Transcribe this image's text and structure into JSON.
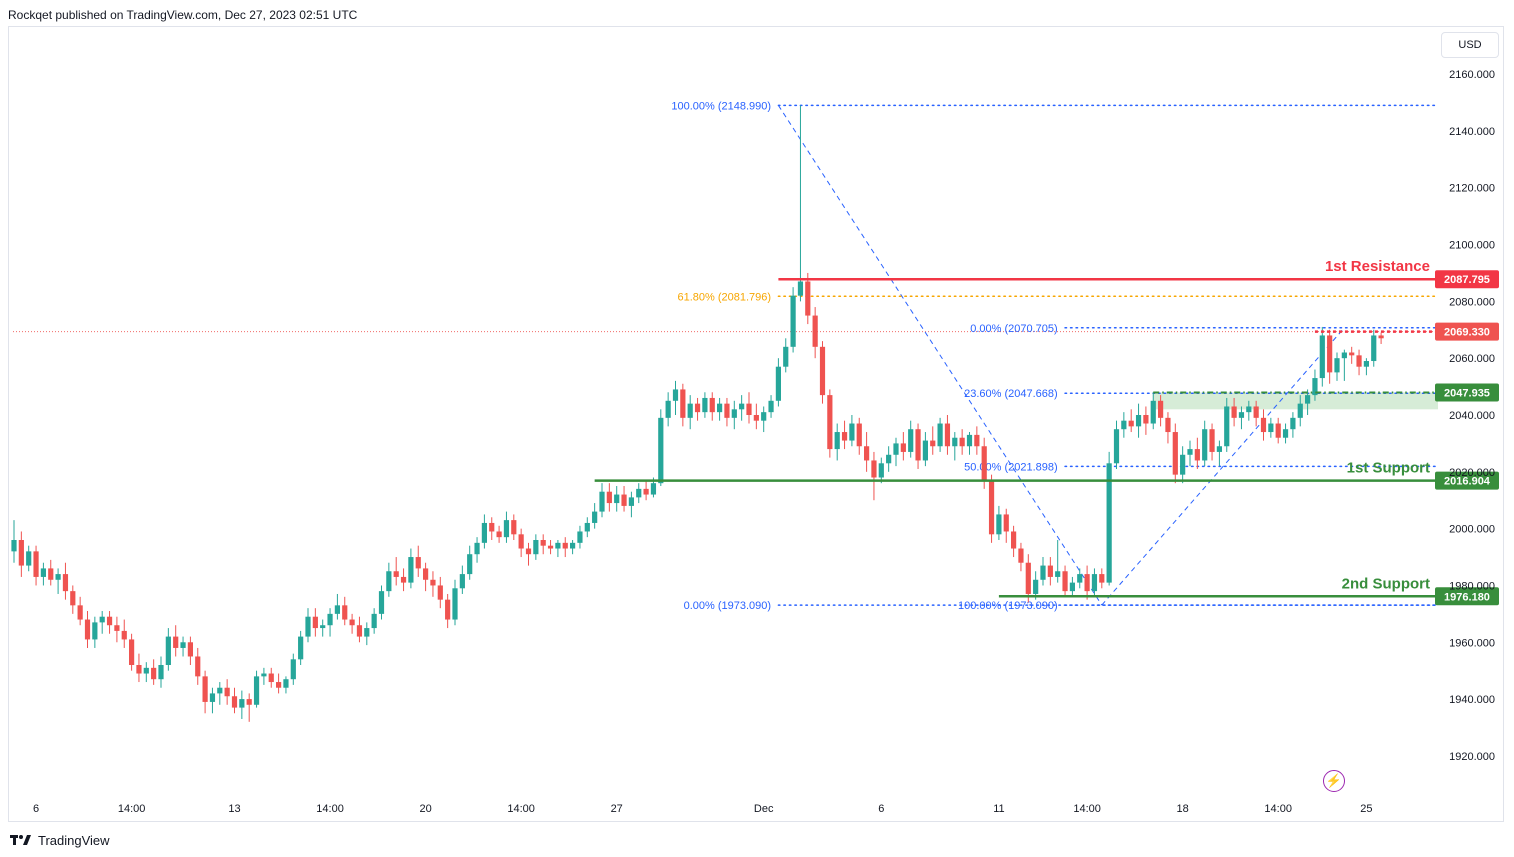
{
  "header": {
    "published": "Rockqet published on TradingView.com, Dec 27, 2023 02:51 UTC"
  },
  "price_axis": {
    "currency": "USD"
  },
  "footer": {
    "brand": "TradingView"
  },
  "colors": {
    "bull": "#26a69a",
    "bear": "#ef5350",
    "resistance": "#f23645",
    "support": "#388e3c",
    "fib_blue": "#2962ff",
    "fib_gold": "#f7a600",
    "zone": "#c8e6c9",
    "gridless_bg": "#ffffff"
  },
  "chart_data": {
    "type": "candlestick",
    "ylim": [
      1908,
      2172
    ],
    "y_ticks": [
      1920,
      1940,
      1960,
      1980,
      2000,
      2020,
      2040,
      2060,
      2080,
      2100,
      2120,
      2140,
      2160
    ],
    "y_tick_labels": [
      "1920.000",
      "1940.000",
      "1960.000",
      "1980.000",
      "2000.000",
      "2020.000",
      "2040.000",
      "2060.000",
      "2080.000",
      "2100.000",
      "2120.000",
      "2140.000",
      "2160.000"
    ],
    "x_ticks": [
      {
        "label": "6",
        "bar": 3
      },
      {
        "label": "14:00",
        "bar": 16
      },
      {
        "label": "13",
        "bar": 30
      },
      {
        "label": "14:00",
        "bar": 43
      },
      {
        "label": "20",
        "bar": 56
      },
      {
        "label": "14:00",
        "bar": 69
      },
      {
        "label": "27",
        "bar": 82
      },
      {
        "label": "Dec",
        "bar": 102
      },
      {
        "label": "6",
        "bar": 118
      },
      {
        "label": "11",
        "bar": 134
      },
      {
        "label": "14:00",
        "bar": 146
      },
      {
        "label": "18",
        "bar": 159
      },
      {
        "label": "14:00",
        "bar": 172
      },
      {
        "label": "25",
        "bar": 184
      }
    ],
    "ohlc": [
      [
        1992,
        2003,
        1988,
        1996
      ],
      [
        1996,
        1999,
        1983,
        1987
      ],
      [
        1987,
        1994,
        1985,
        1992
      ],
      [
        1992,
        1994,
        1980,
        1983
      ],
      [
        1983,
        1988,
        1980,
        1986
      ],
      [
        1986,
        1989,
        1980,
        1982
      ],
      [
        1982,
        1986,
        1977,
        1984
      ],
      [
        1984,
        1988,
        1975,
        1978
      ],
      [
        1978,
        1980,
        1970,
        1973
      ],
      [
        1973,
        1976,
        1966,
        1968
      ],
      [
        1968,
        1971,
        1958,
        1961
      ],
      [
        1961,
        1969,
        1958,
        1967
      ],
      [
        1967,
        1971,
        1963,
        1969
      ],
      [
        1969,
        1971,
        1963,
        1966
      ],
      [
        1966,
        1969,
        1960,
        1964
      ],
      [
        1964,
        1968,
        1958,
        1961
      ],
      [
        1961,
        1963,
        1950,
        1952
      ],
      [
        1952,
        1956,
        1946,
        1949
      ],
      [
        1949,
        1953,
        1946,
        1951
      ],
      [
        1951,
        1954,
        1945,
        1947
      ],
      [
        1947,
        1955,
        1944,
        1952
      ],
      [
        1952,
        1965,
        1950,
        1962
      ],
      [
        1962,
        1966,
        1955,
        1958
      ],
      [
        1958,
        1962,
        1955,
        1960
      ],
      [
        1960,
        1962,
        1952,
        1955
      ],
      [
        1955,
        1958,
        1945,
        1948
      ],
      [
        1948,
        1950,
        1935,
        1939
      ],
      [
        1939,
        1944,
        1935,
        1942
      ],
      [
        1942,
        1946,
        1938,
        1944
      ],
      [
        1944,
        1947,
        1938,
        1941
      ],
      [
        1941,
        1944,
        1935,
        1937
      ],
      [
        1937,
        1943,
        1933,
        1940
      ],
      [
        1940,
        1942,
        1932,
        1938
      ],
      [
        1938,
        1950,
        1937,
        1948
      ],
      [
        1948,
        1951,
        1945,
        1949
      ],
      [
        1949,
        1951,
        1944,
        1946
      ],
      [
        1946,
        1949,
        1942,
        1944
      ],
      [
        1944,
        1948,
        1942,
        1947
      ],
      [
        1947,
        1956,
        1945,
        1954
      ],
      [
        1954,
        1964,
        1952,
        1962
      ],
      [
        1962,
        1972,
        1960,
        1969
      ],
      [
        1969,
        1972,
        1962,
        1965
      ],
      [
        1965,
        1968,
        1962,
        1966
      ],
      [
        1966,
        1972,
        1962,
        1970
      ],
      [
        1970,
        1977,
        1968,
        1973
      ],
      [
        1973,
        1976,
        1966,
        1968
      ],
      [
        1968,
        1970,
        1963,
        1966
      ],
      [
        1966,
        1969,
        1960,
        1962
      ],
      [
        1962,
        1967,
        1959,
        1965
      ],
      [
        1965,
        1972,
        1963,
        1970
      ],
      [
        1970,
        1980,
        1968,
        1978
      ],
      [
        1978,
        1988,
        1976,
        1985
      ],
      [
        1985,
        1990,
        1980,
        1983
      ],
      [
        1983,
        1986,
        1978,
        1981
      ],
      [
        1981,
        1993,
        1979,
        1990
      ],
      [
        1990,
        1994,
        1983,
        1986
      ],
      [
        1986,
        1988,
        1978,
        1982
      ],
      [
        1982,
        1985,
        1976,
        1980
      ],
      [
        1980,
        1983,
        1972,
        1975
      ],
      [
        1975,
        1977,
        1965,
        1968
      ],
      [
        1968,
        1982,
        1966,
        1979
      ],
      [
        1979,
        1987,
        1977,
        1984
      ],
      [
        1984,
        1994,
        1982,
        1991
      ],
      [
        1991,
        1997,
        1988,
        1995
      ],
      [
        1995,
        2005,
        1993,
        2002
      ],
      [
        2002,
        2004,
        1996,
        1999
      ],
      [
        1999,
        2001,
        1995,
        1997
      ],
      [
        1997,
        2006,
        1995,
        2003
      ],
      [
        2003,
        2005,
        1996,
        1998
      ],
      [
        1998,
        2000,
        1990,
        1993
      ],
      [
        1993,
        1995,
        1987,
        1991
      ],
      [
        1991,
        1998,
        1989,
        1996
      ],
      [
        1996,
        1998,
        1991,
        1994
      ],
      [
        1994,
        1996,
        1991,
        1993
      ],
      [
        1993,
        1996,
        1990,
        1995
      ],
      [
        1995,
        1997,
        1990,
        1993
      ],
      [
        1993,
        1996,
        1991,
        1995
      ],
      [
        1995,
        2001,
        1993,
        1999
      ],
      [
        1999,
        2004,
        1997,
        2002
      ],
      [
        2002,
        2009,
        2000,
        2006
      ],
      [
        2006,
        2016,
        2004,
        2013
      ],
      [
        2013,
        2016,
        2006,
        2009
      ],
      [
        2009,
        2015,
        2006,
        2012
      ],
      [
        2012,
        2015,
        2006,
        2008
      ],
      [
        2008,
        2013,
        2004,
        2011
      ],
      [
        2011,
        2016,
        2009,
        2014
      ],
      [
        2014,
        2017,
        2010,
        2012
      ],
      [
        2012,
        2018,
        2011,
        2016
      ],
      [
        2016,
        2042,
        2015,
        2039
      ],
      [
        2039,
        2048,
        2036,
        2045
      ],
      [
        2045,
        2052,
        2040,
        2049
      ],
      [
        2049,
        2051,
        2036,
        2039
      ],
      [
        2039,
        2047,
        2035,
        2044
      ],
      [
        2044,
        2046,
        2038,
        2041
      ],
      [
        2041,
        2048,
        2039,
        2046
      ],
      [
        2046,
        2048,
        2038,
        2041
      ],
      [
        2041,
        2046,
        2038,
        2044
      ],
      [
        2044,
        2046,
        2036,
        2039
      ],
      [
        2039,
        2045,
        2035,
        2042
      ],
      [
        2042,
        2047,
        2038,
        2044
      ],
      [
        2044,
        2048,
        2037,
        2040
      ],
      [
        2040,
        2044,
        2035,
        2038
      ],
      [
        2038,
        2043,
        2034,
        2041
      ],
      [
        2041,
        2047,
        2039,
        2045
      ],
      [
        2045,
        2060,
        2043,
        2057
      ],
      [
        2057,
        2067,
        2055,
        2064
      ],
      [
        2064,
        2085,
        2062,
        2082
      ],
      [
        2082,
        2149,
        2080,
        2087
      ],
      [
        2087,
        2090,
        2072,
        2075
      ],
      [
        2075,
        2078,
        2060,
        2064
      ],
      [
        2064,
        2066,
        2044,
        2047
      ],
      [
        2047,
        2049,
        2025,
        2028
      ],
      [
        2028,
        2037,
        2024,
        2034
      ],
      [
        2034,
        2038,
        2028,
        2031
      ],
      [
        2031,
        2040,
        2029,
        2037
      ],
      [
        2037,
        2039,
        2026,
        2029
      ],
      [
        2029,
        2034,
        2020,
        2024
      ],
      [
        2024,
        2027,
        2010,
        2018
      ],
      [
        2018,
        2025,
        2016,
        2023
      ],
      [
        2023,
        2029,
        2020,
        2026
      ],
      [
        2026,
        2032,
        2022,
        2030
      ],
      [
        2030,
        2034,
        2024,
        2027
      ],
      [
        2027,
        2038,
        2025,
        2035
      ],
      [
        2035,
        2037,
        2021,
        2024
      ],
      [
        2024,
        2034,
        2022,
        2031
      ],
      [
        2031,
        2036,
        2026,
        2029
      ],
      [
        2029,
        2039,
        2027,
        2037
      ],
      [
        2037,
        2040,
        2026,
        2029
      ],
      [
        2029,
        2034,
        2024,
        2032
      ],
      [
        2032,
        2035,
        2026,
        2029
      ],
      [
        2029,
        2034,
        2026,
        2033
      ],
      [
        2033,
        2036,
        2026,
        2029
      ],
      [
        2029,
        2032,
        2014,
        2017
      ],
      [
        2017,
        2019,
        1995,
        1998
      ],
      [
        1998,
        2008,
        1996,
        2005
      ],
      [
        2005,
        2007,
        1995,
        1999
      ],
      [
        1999,
        2001,
        1990,
        1993
      ],
      [
        1993,
        1995,
        1985,
        1988
      ],
      [
        1988,
        1991,
        1974,
        1977
      ],
      [
        1977,
        1985,
        1975,
        1982
      ],
      [
        1982,
        1990,
        1980,
        1987
      ],
      [
        1987,
        1990,
        1980,
        1983
      ],
      [
        1983,
        1996,
        1981,
        1985
      ],
      [
        1985,
        1987,
        1976,
        1978
      ],
      [
        1978,
        1983,
        1976,
        1981
      ],
      [
        1981,
        1986,
        1979,
        1984
      ],
      [
        1984,
        1987,
        1975,
        1978
      ],
      [
        1978,
        1986,
        1976,
        1984
      ],
      [
        1984,
        1986,
        1979,
        1981
      ],
      [
        1981,
        2027,
        1980,
        2023
      ],
      [
        2023,
        2038,
        2021,
        2035
      ],
      [
        2035,
        2041,
        2032,
        2038
      ],
      [
        2038,
        2042,
        2034,
        2036
      ],
      [
        2036,
        2044,
        2032,
        2040
      ],
      [
        2040,
        2043,
        2033,
        2037
      ],
      [
        2037,
        2048,
        2035,
        2045
      ],
      [
        2045,
        2047,
        2036,
        2039
      ],
      [
        2039,
        2041,
        2030,
        2034
      ],
      [
        2034,
        2037,
        2016,
        2019
      ],
      [
        2019,
        2029,
        2016,
        2026
      ],
      [
        2026,
        2031,
        2022,
        2028
      ],
      [
        2028,
        2032,
        2021,
        2024
      ],
      [
        2024,
        2038,
        2022,
        2035
      ],
      [
        2035,
        2037,
        2024,
        2027
      ],
      [
        2027,
        2031,
        2022,
        2029
      ],
      [
        2029,
        2046,
        2027,
        2043
      ],
      [
        2043,
        2046,
        2036,
        2039
      ],
      [
        2039,
        2043,
        2035,
        2041
      ],
      [
        2041,
        2045,
        2038,
        2043
      ],
      [
        2043,
        2045,
        2036,
        2039
      ],
      [
        2039,
        2042,
        2031,
        2034
      ],
      [
        2034,
        2039,
        2032,
        2037
      ],
      [
        2037,
        2039,
        2030,
        2032
      ],
      [
        2032,
        2037,
        2030,
        2035
      ],
      [
        2035,
        2041,
        2032,
        2039
      ],
      [
        2039,
        2047,
        2036,
        2044
      ],
      [
        2044,
        2049,
        2040,
        2047
      ],
      [
        2047,
        2056,
        2045,
        2053
      ],
      [
        2053,
        2071,
        2050,
        2068
      ],
      [
        2068,
        2070,
        2051,
        2055
      ],
      [
        2055,
        2062,
        2052,
        2060
      ],
      [
        2060,
        2063,
        2052,
        2062
      ],
      [
        2062,
        2064,
        2058,
        2061
      ],
      [
        2061,
        2063,
        2054,
        2057
      ],
      [
        2057,
        2060,
        2054,
        2059
      ],
      [
        2059,
        2070,
        2057,
        2068
      ],
      [
        2068,
        2069,
        2065,
        2067
      ]
    ],
    "levels": [
      {
        "name": "resistance-1",
        "price": 2087.795,
        "label": "2087.795",
        "text": "1st Resistance",
        "from_bar": 104,
        "color": "#f23645"
      },
      {
        "name": "support-zone-top",
        "price": 2047.935,
        "label": "2047.935",
        "text": "",
        "from_bar": 155,
        "color": "#388e3c"
      },
      {
        "name": "support-1",
        "price": 2016.904,
        "label": "2016.904",
        "text": "1st Support",
        "from_bar": 79,
        "color": "#388e3c"
      },
      {
        "name": "support-2",
        "price": 1976.18,
        "label": "1976.180",
        "text": "2nd Support",
        "from_bar": 134,
        "color": "#388e3c"
      }
    ],
    "current_price": {
      "price": 2069.33,
      "label": "2069.330"
    },
    "zone": {
      "top": 2047.935,
      "bottom": 2042.0,
      "from_bar": 155
    },
    "fib_lines": [
      {
        "name": "fib-100-top",
        "price": 2148.99,
        "text": "100.00% (2148.990)",
        "from_bar": 104,
        "label_right_bar": 103,
        "color": "#2962ff"
      },
      {
        "name": "fib-618",
        "price": 2081.796,
        "text": "61.80% (2081.796)",
        "from_bar": 104,
        "label_right_bar": 103,
        "color": "#f7a600"
      },
      {
        "name": "fib-0-low",
        "price": 1973.09,
        "text": "0.00% (1973.090)",
        "from_bar": 104,
        "label_right_bar": 103,
        "color": "#2962ff"
      },
      {
        "name": "fib-0-high",
        "price": 2070.705,
        "text": "0.00% (2070.705)",
        "from_bar": 143,
        "label_right_bar": 142,
        "color": "#2962ff"
      },
      {
        "name": "fib-236",
        "price": 2047.668,
        "text": "23.60% (2047.668)",
        "from_bar": 143,
        "label_right_bar": 142,
        "color": "#2962ff"
      },
      {
        "name": "fib-50",
        "price": 2021.898,
        "text": "50.00% (2021.898)",
        "from_bar": 143,
        "label_right_bar": 142,
        "color": "#2962ff"
      },
      {
        "name": "fib-100-low",
        "price": 1973.09,
        "text": "100.00% (1973.090)",
        "from_bar": 143,
        "label_right_bar": 142,
        "color": "#2962ff"
      }
    ],
    "trend_lines": [
      {
        "name": "fib-diag-1",
        "from": [
          104,
          2148.99
        ],
        "to": [
          148,
          1973.09
        ]
      },
      {
        "name": "fib-diag-2",
        "from": [
          148,
          1973.09
        ],
        "to": [
          181,
          2070.705
        ]
      }
    ]
  }
}
